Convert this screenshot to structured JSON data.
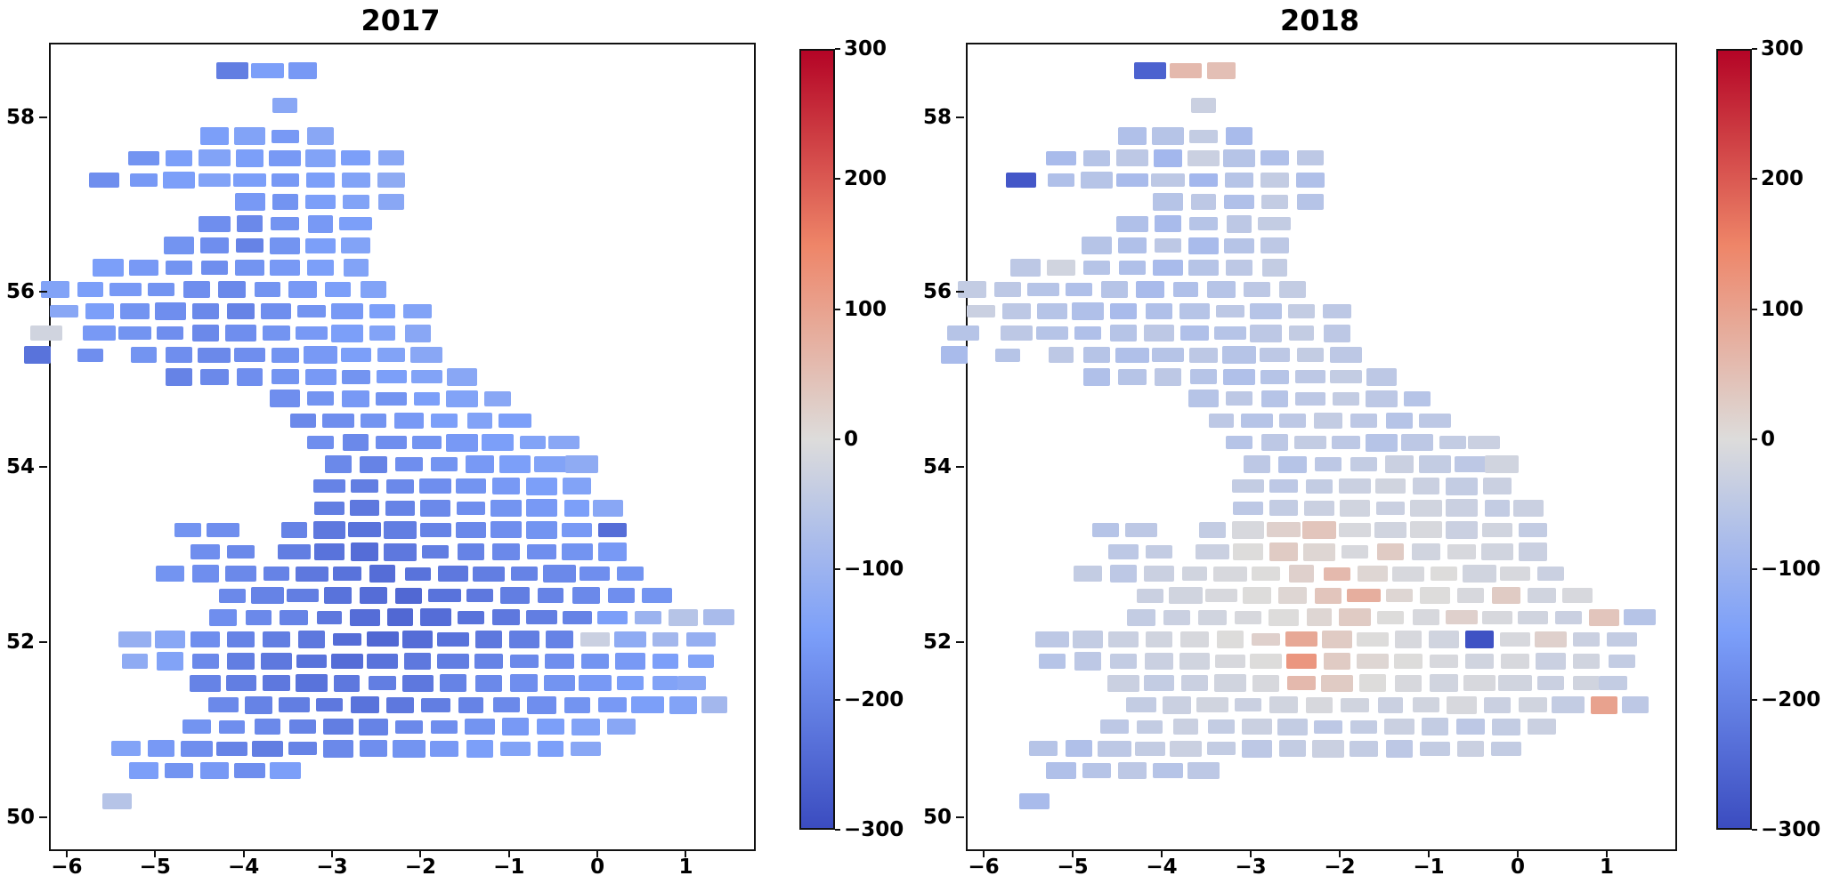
{
  "chart_data": {
    "type": "heatmap",
    "description": "Two geographic grid heatmaps of Great Britain (longitude vs latitude), one per year, colored by value with a coolwarm colormap",
    "subplots": [
      {
        "title": "2017",
        "value_index": 2
      },
      {
        "title": "2018",
        "value_index": 3
      }
    ],
    "xlabel": "",
    "ylabel": "",
    "xlim": [
      -6.2,
      1.75
    ],
    "ylim": [
      49.65,
      58.85
    ],
    "x_ticks": {
      "values": [
        -6,
        -5,
        -4,
        -3,
        -2,
        -1,
        0,
        1
      ],
      "labels": [
        "−6",
        "−5",
        "−4",
        "−3",
        "−2",
        "−1",
        "0",
        "1"
      ]
    },
    "y_ticks": {
      "values": [
        50,
        52,
        54,
        56,
        58
      ],
      "labels": [
        "50",
        "52",
        "54",
        "56",
        "58"
      ]
    },
    "colorbar": {
      "vmin": -300,
      "vmax": 300,
      "tick_values": [
        300,
        200,
        100,
        0,
        -100,
        -200,
        -300
      ],
      "tick_labels": [
        "300",
        "200",
        "100",
        "0",
        "−100",
        "−200",
        "−300"
      ]
    },
    "cmap": {
      "name": "coolwarm",
      "anchors": [
        [
          0,
          "#3b4cc0"
        ],
        [
          0.25,
          "#7c9ff9"
        ],
        [
          0.5,
          "#dddcdb"
        ],
        [
          0.75,
          "#ee8568"
        ],
        [
          1,
          "#b40426"
        ]
      ]
    },
    "grid": {
      "cell_lon_pitch": 0.4,
      "cell_lat_pitch": 0.25
    },
    "rows_format": [
      "lat",
      "lons[]",
      "values_2017[]",
      "values_2018[]"
    ],
    "rows": [
      [
        58.55,
        [
          -4.15,
          -3.75,
          -3.35
        ],
        [
          -210,
          -150,
          -160
        ],
        [
          -260,
          60,
          50
        ]
      ],
      [
        58.15,
        [
          -3.55
        ],
        [
          -130
        ],
        [
          -30
        ]
      ],
      [
        57.8,
        [
          -4.35,
          -3.95,
          -3.55,
          -3.15
        ],
        [
          -150,
          -140,
          -160,
          -130
        ],
        [
          -70,
          -60,
          -40,
          -80
        ]
      ],
      [
        57.55,
        [
          -5.15,
          -4.75,
          -4.35,
          -3.95,
          -3.55,
          -3.15,
          -2.75,
          -2.35
        ],
        [
          -170,
          -150,
          -140,
          -150,
          -160,
          -140,
          -150,
          -130
        ],
        [
          -80,
          -60,
          -50,
          -90,
          -30,
          -60,
          -70,
          -50
        ]
      ],
      [
        57.3,
        [
          -5.6,
          -5.15,
          -4.75,
          -4.35,
          -3.95,
          -3.55,
          -3.15,
          -2.75,
          -2.35
        ],
        [
          -180,
          -160,
          -150,
          -140,
          -150,
          -160,
          -150,
          -140,
          -120
        ],
        [
          -280,
          -70,
          -60,
          -80,
          -50,
          -90,
          -60,
          -40,
          -70
        ]
      ],
      [
        57.05,
        [
          -3.95,
          -3.55,
          -3.15,
          -2.75,
          -2.35
        ],
        [
          -160,
          -170,
          -150,
          -140,
          -130
        ],
        [
          -60,
          -50,
          -70,
          -40,
          -60
        ]
      ],
      [
        56.8,
        [
          -4.35,
          -3.95,
          -3.55,
          -3.15,
          -2.75
        ],
        [
          -180,
          -190,
          -170,
          -160,
          -150
        ],
        [
          -70,
          -80,
          -60,
          -50,
          -40
        ]
      ],
      [
        56.55,
        [
          -4.75,
          -4.35,
          -3.95,
          -3.55,
          -3.15,
          -2.75
        ],
        [
          -170,
          -180,
          -200,
          -170,
          -150,
          -140
        ],
        [
          -60,
          -70,
          -50,
          -80,
          -60,
          -50
        ]
      ],
      [
        56.3,
        [
          -5.55,
          -5.15,
          -4.75,
          -4.35,
          -3.95,
          -3.55,
          -3.15,
          -2.75
        ],
        [
          -150,
          -160,
          -170,
          -180,
          -170,
          -160,
          -150,
          -140
        ],
        [
          -50,
          -20,
          -60,
          -70,
          -80,
          -60,
          -50,
          -40
        ]
      ],
      [
        56.05,
        [
          -6.15,
          -5.75,
          -5.35,
          -4.95,
          -4.55,
          -4.15,
          -3.75,
          -3.35,
          -2.95,
          -2.55
        ],
        [
          -140,
          -150,
          -160,
          -170,
          -180,
          -190,
          -170,
          -160,
          -150,
          -140
        ],
        [
          -40,
          -50,
          -60,
          -70,
          -60,
          -80,
          -70,
          -60,
          -50,
          -40
        ]
      ],
      [
        55.8,
        [
          -6.05,
          -5.65,
          -5.25,
          -4.85,
          -4.45,
          -4.05,
          -3.65,
          -3.25,
          -2.85,
          -2.45,
          -2.05
        ],
        [
          -130,
          -150,
          -170,
          -180,
          -190,
          -200,
          -180,
          -170,
          -160,
          -150,
          -140
        ],
        [
          -30,
          -50,
          -60,
          -70,
          -80,
          -70,
          -60,
          -50,
          -60,
          -40,
          -50
        ]
      ],
      [
        55.55,
        [
          -6.25,
          -5.65,
          -5.25,
          -4.85,
          -4.45,
          -4.05,
          -3.65,
          -3.25,
          -2.85,
          -2.45,
          -2.05
        ],
        [
          -20,
          -160,
          -170,
          -180,
          -190,
          -180,
          -170,
          -160,
          -150,
          -140,
          -130
        ],
        [
          -60,
          -50,
          -60,
          -70,
          -60,
          -50,
          -70,
          -60,
          -50,
          -40,
          -50
        ]
      ],
      [
        55.3,
        [
          -6.35,
          -5.75,
          -5.15,
          -4.75,
          -4.35,
          -3.95,
          -3.55,
          -3.15,
          -2.75,
          -2.35,
          -1.95
        ],
        [
          -230,
          -180,
          -170,
          -180,
          -190,
          -180,
          -170,
          -160,
          -150,
          -140,
          -130
        ],
        [
          -80,
          -60,
          -50,
          -60,
          -70,
          -60,
          -50,
          -60,
          -50,
          -40,
          -50
        ]
      ],
      [
        55.05,
        [
          -4.75,
          -4.35,
          -3.95,
          -3.55,
          -3.15,
          -2.75,
          -2.35,
          -1.95,
          -1.55
        ],
        [
          -200,
          -190,
          -180,
          -170,
          -160,
          -170,
          -150,
          -140,
          -130
        ],
        [
          -70,
          -60,
          -50,
          -60,
          -70,
          -60,
          -50,
          -40,
          -50
        ]
      ],
      [
        54.8,
        [
          -3.55,
          -3.15,
          -2.75,
          -2.35,
          -1.95,
          -1.55,
          -1.15
        ],
        [
          -180,
          -170,
          -160,
          -170,
          -150,
          -140,
          -130
        ],
        [
          -60,
          -50,
          -60,
          -50,
          -40,
          -50,
          -60
        ]
      ],
      [
        54.55,
        [
          -3.35,
          -2.95,
          -2.55,
          -2.15,
          -1.75,
          -1.35,
          -0.95
        ],
        [
          -190,
          -180,
          -170,
          -160,
          -150,
          -140,
          -150
        ],
        [
          -50,
          -60,
          -50,
          -40,
          -50,
          -60,
          -50
        ]
      ],
      [
        54.3,
        [
          -3.15,
          -2.75,
          -2.35,
          -1.95,
          -1.55,
          -1.15,
          -0.75,
          -0.4
        ],
        [
          -180,
          -190,
          -180,
          -170,
          -160,
          -150,
          -140,
          -130
        ],
        [
          -60,
          -50,
          -40,
          -50,
          -60,
          -50,
          -40,
          -30
        ]
      ],
      [
        54.05,
        [
          -2.95,
          -2.55,
          -2.15,
          -1.75,
          -1.35,
          -0.95,
          -0.55,
          -0.2
        ],
        [
          -190,
          -200,
          -180,
          -170,
          -160,
          -150,
          -140,
          -120
        ],
        [
          -50,
          -60,
          -50,
          -40,
          -30,
          -40,
          -50,
          -20
        ]
      ],
      [
        53.8,
        [
          -3.05,
          -2.65,
          -2.25,
          -1.85,
          -1.45,
          -1.05,
          -0.65,
          -0.25
        ],
        [
          -200,
          -210,
          -190,
          -180,
          -170,
          -160,
          -150,
          -140
        ],
        [
          -40,
          -50,
          -40,
          -30,
          -20,
          -30,
          -40,
          -30
        ]
      ],
      [
        53.55,
        [
          -3.05,
          -2.65,
          -2.25,
          -1.85,
          -1.45,
          -1.05,
          -0.65,
          -0.25,
          0.1
        ],
        [
          -210,
          -220,
          -200,
          -190,
          -180,
          -170,
          -160,
          -150,
          -130
        ],
        [
          -50,
          -40,
          -30,
          -20,
          -30,
          -20,
          -30,
          -40,
          -30
        ]
      ],
      [
        53.3,
        [
          -4.65,
          -4.25,
          -3.45,
          -3.05,
          -2.65,
          -2.25,
          -1.85,
          -1.45,
          -1.05,
          -0.65,
          -0.25,
          0.15
        ],
        [
          -170,
          -180,
          -200,
          -220,
          -230,
          -210,
          -200,
          -190,
          -180,
          -170,
          -160,
          -240
        ],
        [
          -60,
          -50,
          -40,
          -10,
          20,
          40,
          -10,
          -20,
          -10,
          -30,
          -20,
          -40
        ]
      ],
      [
        53.05,
        [
          -4.45,
          -4.05,
          -3.45,
          -3.05,
          -2.65,
          -2.25,
          -1.85,
          -1.45,
          -1.05,
          -0.65,
          -0.25,
          0.15
        ],
        [
          -180,
          -190,
          -210,
          -230,
          -240,
          -220,
          -210,
          -200,
          -190,
          -180,
          -170,
          -160
        ],
        [
          -50,
          -40,
          -30,
          0,
          30,
          10,
          -10,
          30,
          -20,
          -10,
          -20,
          -30
        ]
      ],
      [
        52.8,
        [
          -4.85,
          -4.45,
          -4.05,
          -3.65,
          -3.25,
          -2.85,
          -2.45,
          -2.05,
          -1.65,
          -1.25,
          -0.85,
          -0.45,
          -0.05,
          0.35
        ],
        [
          -170,
          -180,
          -190,
          -200,
          -220,
          -230,
          -240,
          -230,
          -220,
          -210,
          -200,
          -190,
          -180,
          -170
        ],
        [
          -40,
          -50,
          -30,
          -20,
          -10,
          0,
          20,
          60,
          10,
          -10,
          0,
          -20,
          -10,
          -30
        ]
      ],
      [
        52.55,
        [
          -4.15,
          -3.75,
          -3.35,
          -2.95,
          -2.55,
          -2.15,
          -1.75,
          -1.35,
          -0.95,
          -0.55,
          -0.15,
          0.25,
          0.65
        ],
        [
          -190,
          -200,
          -210,
          -230,
          -240,
          -250,
          -230,
          -220,
          -210,
          -200,
          -190,
          -180,
          -170
        ],
        [
          -30,
          -20,
          -10,
          0,
          10,
          40,
          80,
          10,
          0,
          -10,
          30,
          -20,
          -10
        ]
      ],
      [
        52.3,
        [
          -4.25,
          -3.85,
          -3.45,
          -3.05,
          -2.65,
          -2.25,
          -1.85,
          -1.45,
          -1.05,
          -0.65,
          -0.25,
          0.15,
          0.55,
          0.95,
          1.35
        ],
        [
          -180,
          -190,
          -200,
          -220,
          -240,
          -250,
          -240,
          -230,
          -220,
          -210,
          -200,
          -150,
          -100,
          -60,
          -80
        ],
        [
          -40,
          -30,
          -20,
          -10,
          0,
          10,
          30,
          0,
          -10,
          20,
          -10,
          -20,
          -30,
          40,
          -60
        ]
      ],
      [
        52.05,
        [
          -5.25,
          -4.85,
          -4.45,
          -4.05,
          -3.65,
          -3.25,
          -2.85,
          -2.45,
          -2.05,
          -1.65,
          -1.25,
          -0.85,
          -0.45,
          -0.05,
          0.35,
          0.75,
          1.15
        ],
        [
          -110,
          -130,
          -180,
          -200,
          -210,
          -220,
          -240,
          -250,
          -240,
          -230,
          -220,
          -210,
          -200,
          -30,
          -120,
          -90,
          -110
        ],
        [
          -50,
          -40,
          -30,
          -20,
          -10,
          0,
          20,
          90,
          30,
          0,
          -10,
          -20,
          -290,
          -10,
          20,
          -30,
          -40
        ]
      ],
      [
        51.8,
        [
          -5.25,
          -4.85,
          -4.45,
          -4.05,
          -3.65,
          -3.25,
          -2.85,
          -2.45,
          -2.05,
          -1.65,
          -1.25,
          -0.85,
          -0.45,
          -0.05,
          0.35,
          0.75,
          1.15
        ],
        [
          -120,
          -140,
          -190,
          -210,
          -220,
          -230,
          -240,
          -230,
          -220,
          -210,
          -200,
          -190,
          -180,
          -170,
          -160,
          -150,
          -140
        ],
        [
          -60,
          -50,
          -40,
          -30,
          -20,
          -10,
          0,
          120,
          30,
          10,
          0,
          -10,
          -20,
          -10,
          -30,
          -20,
          -40
        ]
      ],
      [
        51.55,
        [
          -4.45,
          -4.05,
          -3.65,
          -3.25,
          -2.85,
          -2.45,
          -2.05,
          -1.65,
          -1.25,
          -0.85,
          -0.45,
          -0.05,
          0.35,
          0.75,
          1.05
        ],
        [
          -200,
          -210,
          -220,
          -230,
          -220,
          -210,
          -220,
          -200,
          -190,
          -180,
          -170,
          -160,
          -150,
          -140,
          -130
        ],
        [
          -30,
          -40,
          -30,
          -20,
          -10,
          60,
          30,
          0,
          -10,
          -20,
          -10,
          -20,
          -30,
          -20,
          -40
        ]
      ],
      [
        51.3,
        [
          -4.25,
          -3.85,
          -3.45,
          -3.05,
          -2.65,
          -2.25,
          -1.85,
          -1.45,
          -1.05,
          -0.65,
          -0.25,
          0.15,
          0.55,
          0.95,
          1.3
        ],
        [
          -190,
          -200,
          -210,
          -220,
          -230,
          -220,
          -210,
          -200,
          -190,
          -180,
          -170,
          -160,
          -150,
          -140,
          -90
        ],
        [
          -40,
          -30,
          -20,
          -30,
          -20,
          -10,
          -20,
          -30,
          -20,
          -10,
          -30,
          -20,
          -40,
          100,
          -50
        ]
      ],
      [
        51.05,
        [
          -4.55,
          -4.15,
          -3.75,
          -3.35,
          -2.95,
          -2.55,
          -2.15,
          -1.75,
          -1.35,
          -0.95,
          -0.55,
          -0.15,
          0.25
        ],
        [
          -170,
          -180,
          -190,
          -200,
          -210,
          -200,
          -190,
          -180,
          -170,
          -160,
          -150,
          -140,
          -130
        ],
        [
          -50,
          -40,
          -30,
          -40,
          -30,
          -40,
          -50,
          -40,
          -30,
          -40,
          -50,
          -40,
          -30
        ]
      ],
      [
        50.8,
        [
          -5.35,
          -4.95,
          -4.55,
          -4.15,
          -3.75,
          -3.35,
          -2.95,
          -2.55,
          -2.15,
          -1.75,
          -1.35,
          -0.95,
          -0.55,
          -0.15
        ],
        [
          -140,
          -160,
          -180,
          -200,
          -210,
          -200,
          -190,
          -180,
          -170,
          -160,
          -150,
          -140,
          -150,
          -130
        ],
        [
          -60,
          -70,
          -50,
          -40,
          -30,
          -40,
          -50,
          -40,
          -30,
          -40,
          -50,
          -40,
          -30,
          -40
        ]
      ],
      [
        50.55,
        [
          -5.15,
          -4.75,
          -4.35,
          -3.95,
          -3.55
        ],
        [
          -150,
          -170,
          -160,
          -180,
          -150
        ],
        [
          -70,
          -60,
          -50,
          -60,
          -50
        ]
      ],
      [
        50.2,
        [
          -5.45
        ],
        [
          -60
        ],
        [
          -80
        ]
      ]
    ]
  }
}
